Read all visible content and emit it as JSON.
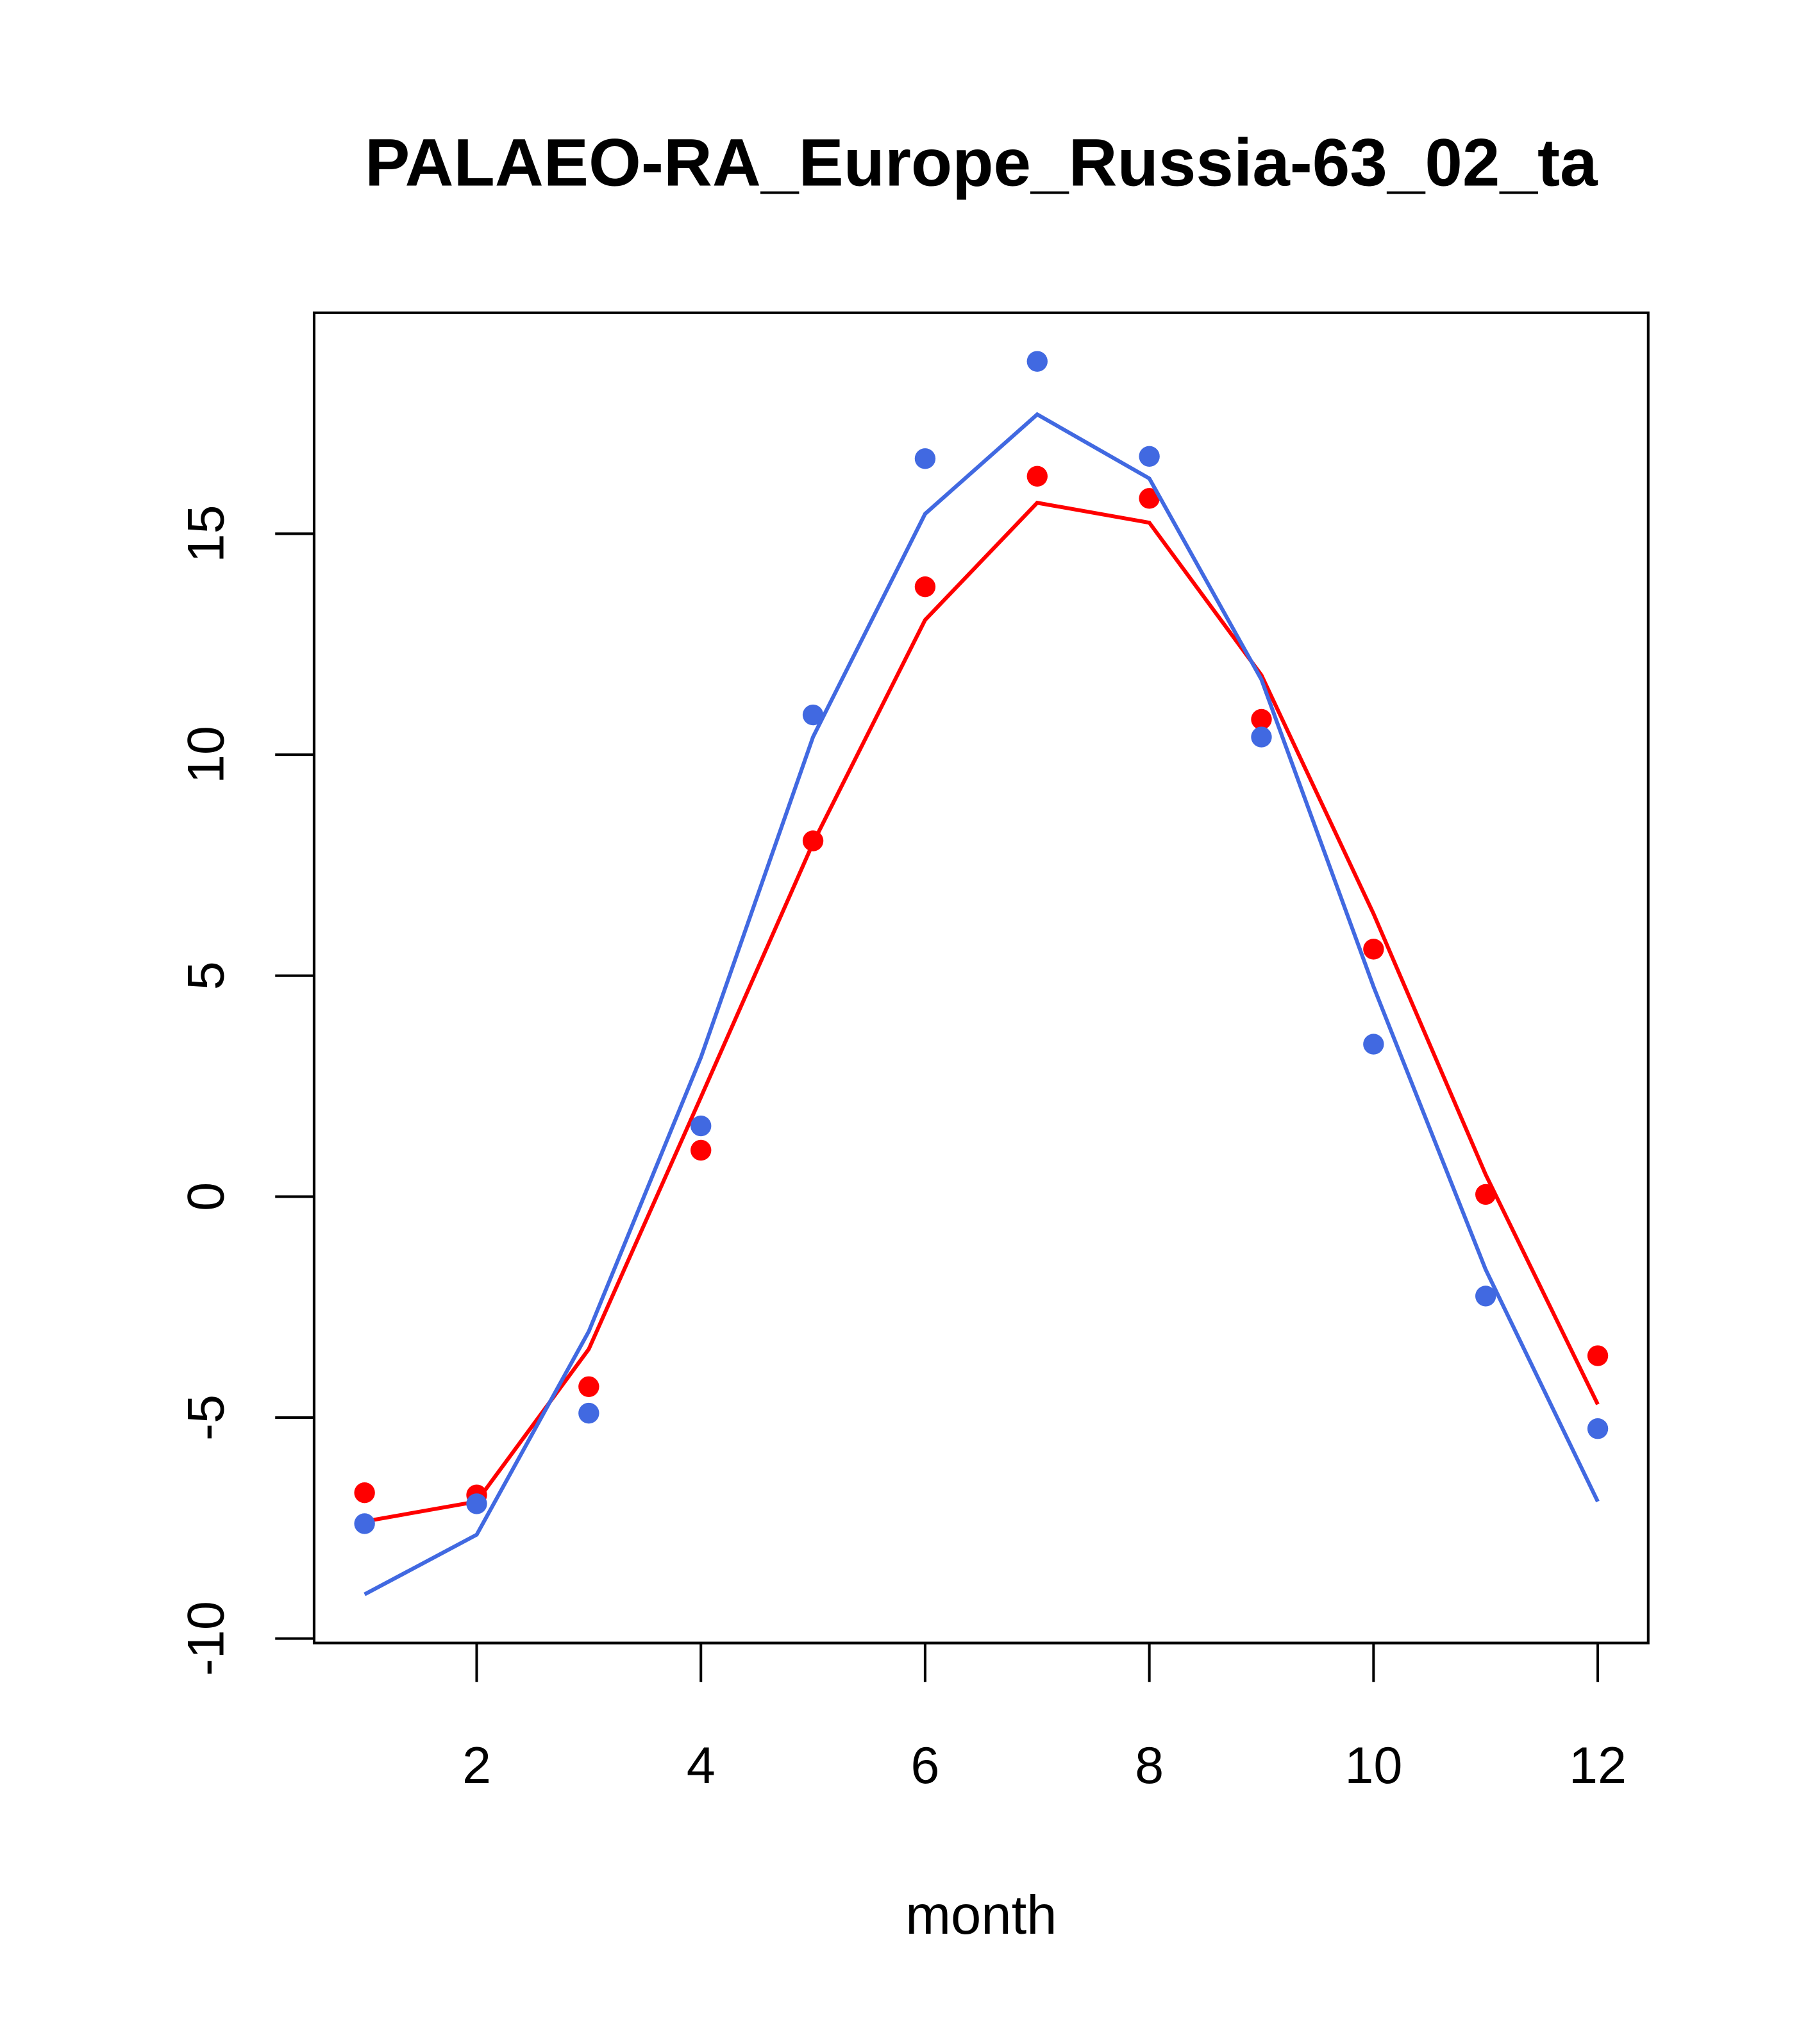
{
  "chart_data": {
    "type": "line",
    "title": "PALAEO-RA_Europe_Russia-63_02_ta",
    "xlabel": "month",
    "ylabel": "",
    "xlim": [
      0.55,
      12.45
    ],
    "ylim": [
      -10.1,
      20
    ],
    "x_ticks": [
      2,
      4,
      6,
      8,
      10,
      12
    ],
    "y_ticks": [
      -10,
      -5,
      0,
      5,
      10,
      15
    ],
    "x_tick_labels": [
      "2",
      "4",
      "6",
      "8",
      "10",
      "12"
    ],
    "y_tick_labels": [
      "-10",
      "-5",
      "0",
      "5",
      "10",
      "15"
    ],
    "x": [
      1,
      2,
      3,
      4,
      5,
      6,
      7,
      8,
      9,
      10,
      11,
      12
    ],
    "series": [
      {
        "name": "red-points",
        "kind": "points",
        "color": "#ff0000",
        "values": [
          -6.7,
          -6.75,
          -4.3,
          1.05,
          8.05,
          13.8,
          16.3,
          15.8,
          10.8,
          5.6,
          0.05,
          -3.6
        ]
      },
      {
        "name": "red-line",
        "kind": "line",
        "color": "#ff0000",
        "values": [
          -7.35,
          -6.9,
          -3.45,
          2.25,
          8.0,
          13.05,
          15.7,
          15.25,
          11.8,
          6.4,
          0.5,
          -4.7
        ]
      },
      {
        "name": "blue-points",
        "kind": "points",
        "color": "#4169e1",
        "values": [
          -7.4,
          -6.95,
          -4.9,
          1.6,
          10.9,
          16.7,
          18.9,
          16.75,
          10.4,
          3.45,
          -2.25,
          -5.25
        ]
      },
      {
        "name": "blue-line",
        "kind": "line",
        "color": "#4169e1",
        "values": [
          -9.0,
          -7.65,
          -3.05,
          3.15,
          10.4,
          15.45,
          17.7,
          16.25,
          11.7,
          4.75,
          -1.65,
          -6.9
        ]
      }
    ],
    "grid": false,
    "legend": "none"
  }
}
